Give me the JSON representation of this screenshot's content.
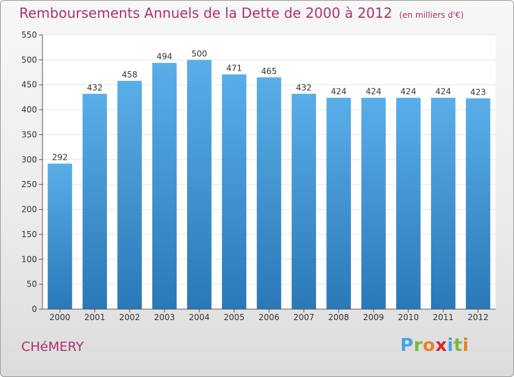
{
  "header": {
    "title": "Remboursements Annuels de la Dette de 2000 à 2012",
    "unit": "(en milliers d'€)"
  },
  "footer": {
    "commune": "CHéMERY",
    "brand": "Proxiti",
    "brand_colors": [
      "#4aa3df",
      "#7bb73c",
      "#e3822a",
      "#d8262f",
      "#4aa3df",
      "#7bb73c",
      "#e3822a"
    ]
  },
  "colors": {
    "bar_top": "#5aaee8",
    "bar_bottom": "#2a78b8",
    "title": "#b0306a"
  },
  "chart_data": {
    "type": "bar",
    "title": "Remboursements Annuels de la Dette de 2000 à 2012",
    "unit": "(en milliers d'€)",
    "categories": [
      "2000",
      "2001",
      "2002",
      "2003",
      "2004",
      "2005",
      "2006",
      "2007",
      "2008",
      "2009",
      "2010",
      "2011",
      "2012"
    ],
    "values": [
      292,
      432,
      458,
      494,
      500,
      471,
      465,
      432,
      424,
      424,
      424,
      424,
      423
    ],
    "ylim": [
      0,
      550
    ],
    "yticks": [
      0,
      50,
      100,
      150,
      200,
      250,
      300,
      350,
      400,
      450,
      500,
      550
    ],
    "grid": true
  }
}
